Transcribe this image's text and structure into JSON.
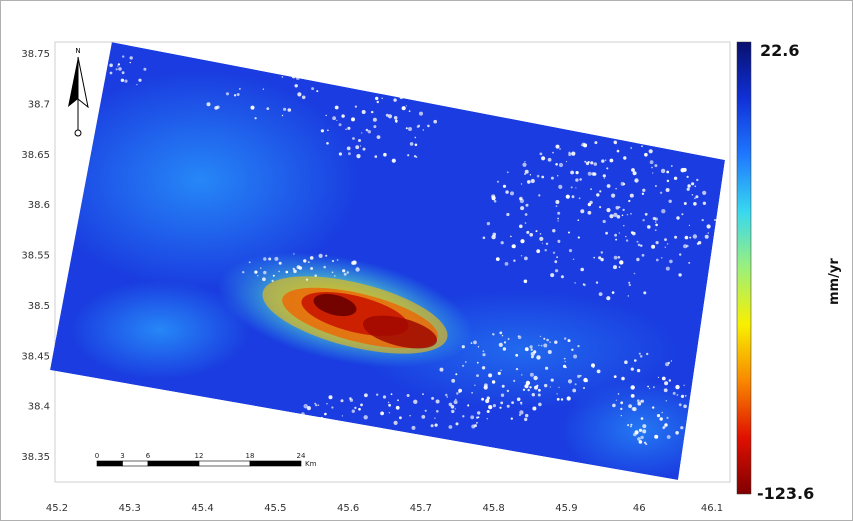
{
  "map": {
    "type": "insar_velocity_map",
    "x_ticks": [
      "45.2",
      "45.3",
      "45.4",
      "45.5",
      "45.6",
      "45.7",
      "45.8",
      "45.9",
      "46",
      "46.1"
    ],
    "x_values": [
      45.2,
      45.3,
      45.4,
      45.5,
      45.6,
      45.7,
      45.8,
      45.9,
      46.0,
      46.1
    ],
    "y_ticks": [
      "38.75",
      "38.7",
      "38.65",
      "38.6",
      "38.55",
      "38.5",
      "38.45",
      "38.4",
      "38.35"
    ],
    "y_values": [
      38.75,
      38.7,
      38.65,
      38.6,
      38.55,
      38.5,
      38.45,
      38.4,
      38.35
    ],
    "colorbar": {
      "max": "22.6",
      "min": "-123.6",
      "unit": "mm/yr",
      "colors": [
        "#08106e",
        "#1030d8",
        "#1e78ff",
        "#38d8f0",
        "#9cf07a",
        "#f8f000",
        "#f88800",
        "#e01000",
        "#800000"
      ]
    },
    "scale_bar": {
      "labels": [
        "0",
        "3",
        "6",
        "12",
        "18",
        "24"
      ],
      "unit": "Km"
    },
    "north_arrow": "north-arrow-icon",
    "subsidence_max_rate": -123.6
  }
}
